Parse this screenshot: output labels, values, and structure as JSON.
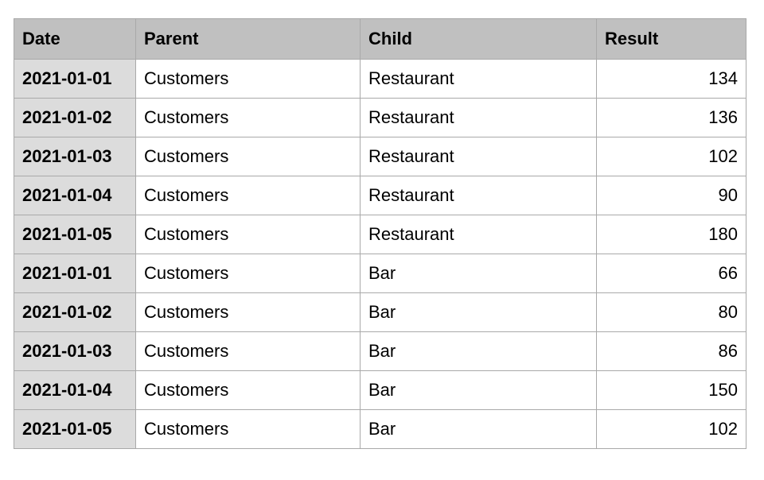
{
  "table": {
    "columns": [
      "Date",
      "Parent",
      "Child",
      "Result"
    ],
    "rows": [
      {
        "date": "2021-01-01",
        "parent": "Customers",
        "child": "Restaurant",
        "result": "134"
      },
      {
        "date": "2021-01-02",
        "parent": "Customers",
        "child": "Restaurant",
        "result": "136"
      },
      {
        "date": "2021-01-03",
        "parent": "Customers",
        "child": "Restaurant",
        "result": "102"
      },
      {
        "date": "2021-01-04",
        "parent": "Customers",
        "child": "Restaurant",
        "result": "90"
      },
      {
        "date": "2021-01-05",
        "parent": "Customers",
        "child": "Restaurant",
        "result": "180"
      },
      {
        "date": "2021-01-01",
        "parent": "Customers",
        "child": "Bar",
        "result": "66"
      },
      {
        "date": "2021-01-02",
        "parent": "Customers",
        "child": "Bar",
        "result": "80"
      },
      {
        "date": "2021-01-03",
        "parent": "Customers",
        "child": "Bar",
        "result": "86"
      },
      {
        "date": "2021-01-04",
        "parent": "Customers",
        "child": "Bar",
        "result": "150"
      },
      {
        "date": "2021-01-05",
        "parent": "Customers",
        "child": "Bar",
        "result": "102"
      }
    ]
  },
  "colors": {
    "header_bg": "#c0c0c0",
    "date_col_bg": "#dcdcdc",
    "grid_line": "#a9a9a9"
  }
}
